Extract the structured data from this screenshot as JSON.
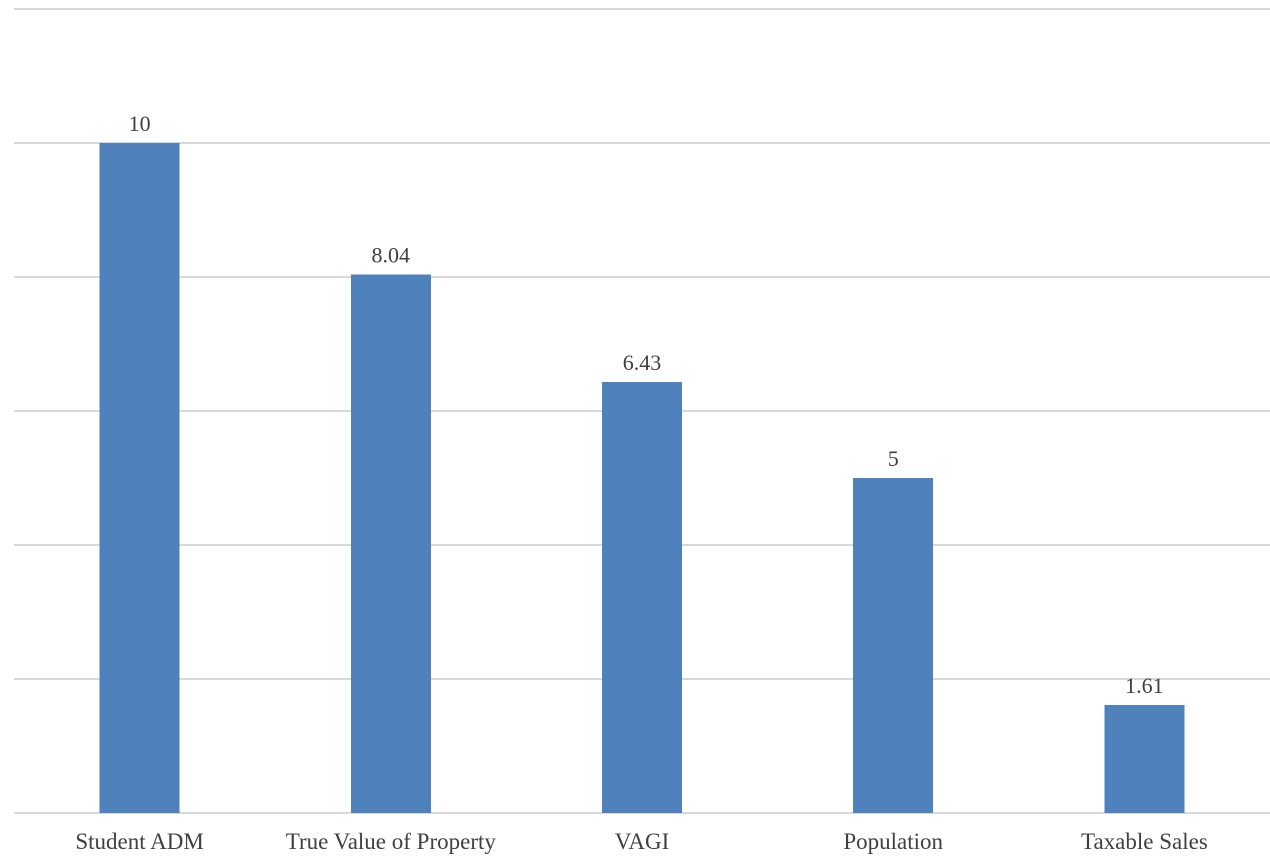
{
  "chart_data": {
    "type": "bar",
    "title": "",
    "xlabel": "",
    "ylabel": "",
    "categories": [
      "Student ADM",
      "True Value of Property",
      "VAGI",
      "Population",
      "Taxable Sales"
    ],
    "values": [
      10,
      8.04,
      6.43,
      5,
      1.61
    ],
    "data_labels": [
      "10",
      "8.04",
      "6.43",
      "5",
      "1.61"
    ],
    "ylim": [
      0,
      12
    ],
    "y_gridlines": [
      0,
      2,
      4,
      6,
      8,
      10,
      12
    ],
    "grid": true,
    "y_tick_labels_shown": false,
    "legend": "none",
    "colors": {
      "bar": "#4f81bd",
      "grid": "#d9d9d9",
      "text": "#404040"
    }
  }
}
